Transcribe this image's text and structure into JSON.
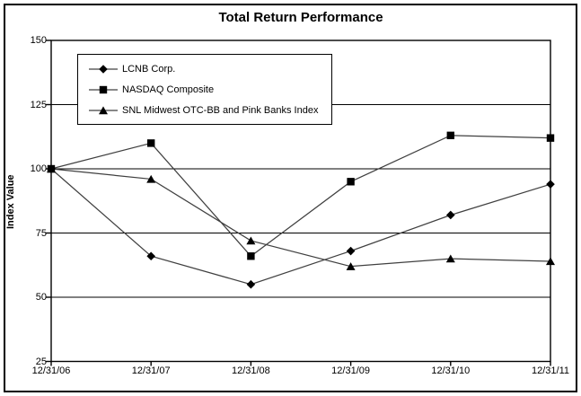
{
  "figure": {
    "background": "#ffffff",
    "border_color": "#000000"
  },
  "chart_data": {
    "type": "line",
    "title": "Total Return Performance",
    "ylabel": "Index Value",
    "xlabel": "",
    "categories": [
      "12/31/06",
      "12/31/07",
      "12/31/08",
      "12/31/09",
      "12/31/10",
      "12/31/11"
    ],
    "series": [
      {
        "name": "LCNB Corp.",
        "marker": "diamond",
        "color": "#000000",
        "values": [
          100,
          66,
          55,
          68,
          82,
          94
        ]
      },
      {
        "name": "NASDAQ Composite",
        "marker": "square",
        "color": "#000000",
        "values": [
          100,
          110,
          66,
          95,
          113,
          112
        ]
      },
      {
        "name": "SNL Midwest OTC-BB and Pink Banks Index",
        "marker": "triangle",
        "color": "#000000",
        "values": [
          100,
          96,
          72,
          62,
          65,
          64
        ]
      }
    ],
    "ylim": [
      25,
      150
    ],
    "yticks": [
      150,
      125,
      100,
      75,
      50,
      25
    ],
    "grid": true,
    "legend_position": "upper-left-inside",
    "line_color": "#404040",
    "axis_color": "#000000"
  }
}
